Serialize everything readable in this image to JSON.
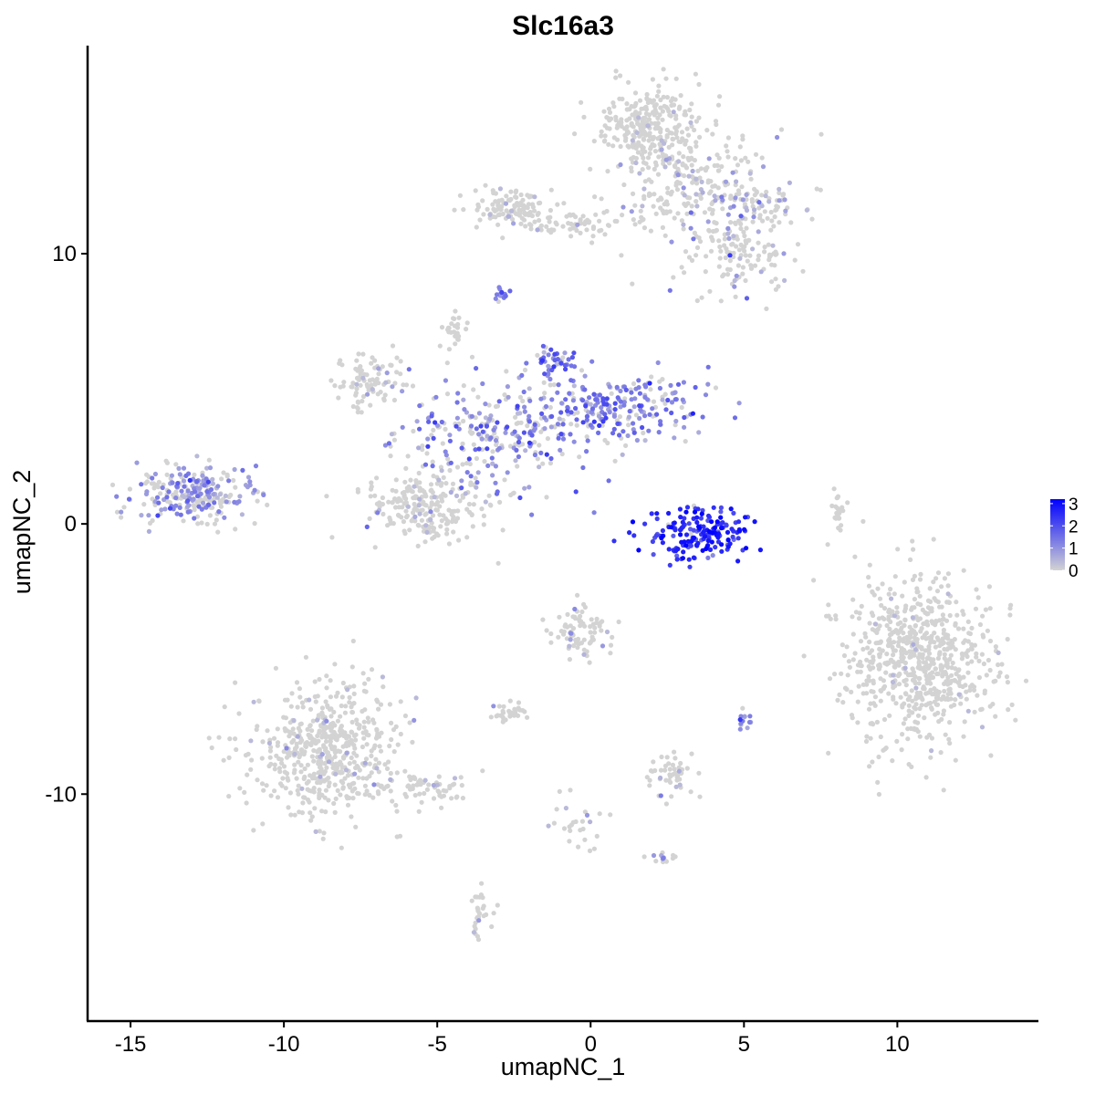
{
  "chart_data": {
    "type": "scatter",
    "title": "Slc16a3",
    "xlabel": "umapNC_1",
    "ylabel": "umapNC_2",
    "xlim": [
      -16.4,
      14.6
    ],
    "ylim": [
      -18.4,
      17.7
    ],
    "x_ticks": [
      -15,
      -10,
      -5,
      0,
      5,
      10
    ],
    "x_tick_labels": [
      "-15",
      "-10",
      "-5",
      "0",
      "5",
      "10"
    ],
    "y_ticks": [
      -10,
      0,
      10
    ],
    "y_tick_labels": [
      "-10",
      "0",
      "10"
    ],
    "grid": false,
    "legend": {
      "placement": "right",
      "type": "colorbar",
      "min": 0,
      "max": 3.2,
      "ticks": [
        0,
        1,
        2,
        3
      ],
      "tick_labels": [
        "0",
        "1",
        "2",
        "3"
      ],
      "color_low": "#d3d3d3",
      "color_high": "#0000ff"
    },
    "point_color_low": "#d3d3d3",
    "point_color_high": "#0000ff",
    "clusters": [
      {
        "id": "top-right-arm-upper",
        "cx": 2.0,
        "cy": 14.8,
        "sx": 0.9,
        "sy": 0.7,
        "n": 260,
        "expr_mean": 0.1,
        "expr_frac": 0.05
      },
      {
        "id": "top-right-arm-mid",
        "cx": 3.3,
        "cy": 12.5,
        "sx": 1.4,
        "sy": 1.0,
        "n": 240,
        "expr_mean": 0.5,
        "expr_frac": 0.15
      },
      {
        "id": "top-right-arm-right",
        "cx": 5.2,
        "cy": 11.6,
        "sx": 0.7,
        "sy": 0.5,
        "n": 80,
        "expr_mean": 0.8,
        "expr_frac": 0.3
      },
      {
        "id": "top-right-arm-lower",
        "cx": 4.9,
        "cy": 9.8,
        "sx": 0.9,
        "sy": 0.7,
        "n": 120,
        "expr_mean": 0.6,
        "expr_frac": 0.15
      },
      {
        "id": "top-left-cap",
        "cx": -2.6,
        "cy": 11.7,
        "sx": 0.7,
        "sy": 0.4,
        "n": 110,
        "expr_mean": 0.2,
        "expr_frac": 0.05
      },
      {
        "id": "top-bridge",
        "cx": -0.5,
        "cy": 11.1,
        "sx": 1.3,
        "sy": 0.25,
        "n": 70,
        "expr_mean": 0.1,
        "expr_frac": 0.03
      },
      {
        "id": "small-purple-top",
        "cx": -2.9,
        "cy": 8.5,
        "sx": 0.12,
        "sy": 0.12,
        "n": 14,
        "expr_mean": 1.5,
        "expr_frac": 0.9
      },
      {
        "id": "center-top-stalk",
        "cx": -4.5,
        "cy": 7.3,
        "sx": 0.2,
        "sy": 0.3,
        "n": 25,
        "expr_mean": 0.1,
        "expr_frac": 0.02
      },
      {
        "id": "center-left-arm",
        "cx": -7.1,
        "cy": 5.3,
        "sx": 0.6,
        "sy": 0.5,
        "n": 90,
        "expr_mean": 0.3,
        "expr_frac": 0.1
      },
      {
        "id": "center-hub",
        "cx": -3.0,
        "cy": 3.3,
        "sx": 1.5,
        "sy": 1.0,
        "n": 260,
        "expr_mean": 1.2,
        "expr_frac": 0.6
      },
      {
        "id": "center-right-arm",
        "cx": 0.9,
        "cy": 4.3,
        "sx": 1.6,
        "sy": 0.6,
        "n": 240,
        "expr_mean": 1.3,
        "expr_frac": 0.75
      },
      {
        "id": "center-right-knob",
        "cx": -1.2,
        "cy": 6.0,
        "sx": 0.3,
        "sy": 0.3,
        "n": 40,
        "expr_mean": 1.5,
        "expr_frac": 0.8
      },
      {
        "id": "center-lower-blob",
        "cx": -5.4,
        "cy": 0.7,
        "sx": 1.0,
        "sy": 0.7,
        "n": 230,
        "expr_mean": 0.3,
        "expr_frac": 0.1
      },
      {
        "id": "left-island",
        "cx": -13.0,
        "cy": 1.1,
        "sx": 1.0,
        "sy": 0.55,
        "n": 260,
        "expr_mean": 1.0,
        "expr_frac": 0.55
      },
      {
        "id": "high-expr-crescent",
        "cx": 3.5,
        "cy": -0.4,
        "sx": 0.8,
        "sy": 0.5,
        "n": 180,
        "expr_mean": 2.6,
        "expr_frac": 0.98
      },
      {
        "id": "thin-streak-right",
        "cx": 8.1,
        "cy": 0.4,
        "sx": 0.12,
        "sy": 0.45,
        "n": 25,
        "expr_mean": 0.0,
        "expr_frac": 0.0
      },
      {
        "id": "right-large-blob",
        "cx": 10.7,
        "cy": -5.0,
        "sx": 1.2,
        "sy": 1.5,
        "n": 720,
        "expr_mean": 0.1,
        "expr_frac": 0.02
      },
      {
        "id": "mid-lower-small",
        "cx": -0.3,
        "cy": -4.0,
        "sx": 0.5,
        "sy": 0.5,
        "n": 80,
        "expr_mean": 0.4,
        "expr_frac": 0.1
      },
      {
        "id": "bottom-left-large",
        "cx": -8.6,
        "cy": -8.3,
        "sx": 1.2,
        "sy": 1.2,
        "n": 560,
        "expr_mean": 0.2,
        "expr_frac": 0.06
      },
      {
        "id": "bottom-left-tail",
        "cx": -5.4,
        "cy": -9.8,
        "sx": 1.0,
        "sy": 0.3,
        "n": 70,
        "expr_mean": 0.3,
        "expr_frac": 0.1
      },
      {
        "id": "small-cluster-a",
        "cx": -2.6,
        "cy": -7.0,
        "sx": 0.3,
        "sy": 0.2,
        "n": 30,
        "expr_mean": 0.3,
        "expr_frac": 0.1
      },
      {
        "id": "small-cluster-b",
        "cx": 2.6,
        "cy": -9.3,
        "sx": 0.4,
        "sy": 0.4,
        "n": 50,
        "expr_mean": 0.3,
        "expr_frac": 0.1
      },
      {
        "id": "small-cluster-c",
        "cx": 5.0,
        "cy": -7.3,
        "sx": 0.1,
        "sy": 0.2,
        "n": 14,
        "expr_mean": 1.0,
        "expr_frac": 0.7
      },
      {
        "id": "small-cluster-d",
        "cx": 2.3,
        "cy": -12.4,
        "sx": 0.3,
        "sy": 0.15,
        "n": 14,
        "expr_mean": 0.6,
        "expr_frac": 0.3
      },
      {
        "id": "small-cluster-e",
        "cx": -3.6,
        "cy": -14.4,
        "sx": 0.2,
        "sy": 0.4,
        "n": 30,
        "expr_mean": 0.3,
        "expr_frac": 0.1
      },
      {
        "id": "small-cluster-f",
        "cx": -0.4,
        "cy": -11.2,
        "sx": 0.35,
        "sy": 0.6,
        "n": 26,
        "expr_mean": 0.3,
        "expr_frac": 0.1
      }
    ]
  }
}
